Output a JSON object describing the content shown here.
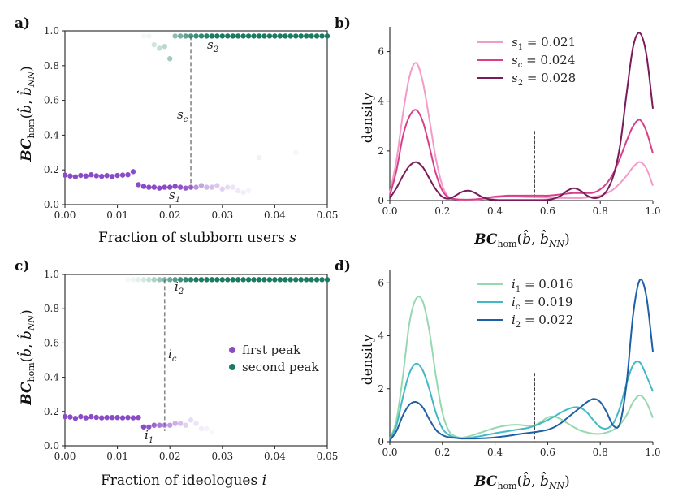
{
  "panels": {
    "a": "a)",
    "b": "b)",
    "c": "c)",
    "d": "d)"
  },
  "colors": {
    "first_peak": "#8a4bc7",
    "second_peak": "#1b7a62",
    "s1": "#f49ac9",
    "sc": "#d6408b",
    "s2": "#7a1a5a",
    "i1": "#98d8b0",
    "ic": "#42b9c6",
    "i2": "#1f5fa6"
  },
  "labels": {
    "ylabel_left": "BC_hom(b̂, b̂_NN)",
    "xlabel_b": "BC_hom(b̂, b̂_NN)",
    "xlabel_a": "Fraction of stubborn users s",
    "xlabel_c": "Fraction of ideologues i",
    "density": "density",
    "a_s2": "s2",
    "a_sc": "sc",
    "a_s1": "s1",
    "c_i2": "i2",
    "c_ic": "ic",
    "c_i1": "i1",
    "legend_first": "first peak",
    "legend_second": "second peak",
    "b_leg1": "s1 = 0.021",
    "b_leg2": "sc = 0.024",
    "b_leg3": "s2 = 0.028",
    "d_leg1": "i1 = 0.016",
    "d_leg2": "ic = 0.019",
    "d_leg3": "i2 = 0.022"
  },
  "chart_data": [
    {
      "id": "a",
      "type": "scatter",
      "xlabel": "Fraction of stubborn users s",
      "ylabel": "BC_hom(b̂, b̂_NN)",
      "xlim": [
        0,
        0.05
      ],
      "ylim": [
        0,
        1
      ],
      "xticks": [
        "0.00",
        "0.01",
        "0.02",
        "0.03",
        "0.04",
        "0.05"
      ],
      "yticks": [
        "0.0",
        "0.2",
        "0.4",
        "0.6",
        "0.8",
        "1.0"
      ],
      "vline": 0.024,
      "series": [
        {
          "name": "first peak",
          "x": [
            0.0,
            0.001,
            0.002,
            0.003,
            0.004,
            0.005,
            0.006,
            0.007,
            0.008,
            0.009,
            0.01,
            0.011,
            0.012,
            0.013,
            0.014,
            0.015,
            0.016,
            0.017,
            0.018,
            0.019,
            0.02,
            0.021,
            0.022,
            0.023,
            0.024,
            0.025,
            0.026,
            0.027,
            0.028,
            0.029,
            0.03,
            0.031,
            0.032,
            0.033,
            0.034,
            0.035
          ],
          "y": [
            0.17,
            0.165,
            0.16,
            0.168,
            0.165,
            0.172,
            0.166,
            0.163,
            0.167,
            0.162,
            0.168,
            0.17,
            0.172,
            0.19,
            0.115,
            0.105,
            0.1,
            0.1,
            0.095,
            0.1,
            0.1,
            0.105,
            0.1,
            0.095,
            0.1,
            0.1,
            0.11,
            0.1,
            0.1,
            0.11,
            0.09,
            0.1,
            0.1,
            0.08,
            0.07,
            0.08
          ],
          "alpha": [
            1,
            1,
            1,
            1,
            1,
            1,
            1,
            1,
            1,
            1,
            1,
            1,
            1,
            1,
            1,
            1,
            1,
            1,
            1,
            1,
            1,
            1,
            0.95,
            0.9,
            0.8,
            0.6,
            0.5,
            0.4,
            0.35,
            0.3,
            0.25,
            0.2,
            0.15,
            0.12,
            0.1,
            0.08
          ]
        },
        {
          "name": "second peak",
          "x": [
            0.015,
            0.016,
            0.017,
            0.018,
            0.019,
            0.02,
            0.021,
            0.022,
            0.023,
            0.024,
            0.025,
            0.026,
            0.027,
            0.028,
            0.029,
            0.03,
            0.031,
            0.032,
            0.033,
            0.034,
            0.035,
            0.036,
            0.037,
            0.038,
            0.039,
            0.04,
            0.041,
            0.042,
            0.043,
            0.044,
            0.045,
            0.046,
            0.047,
            0.048,
            0.049,
            0.05,
            0.037,
            0.044
          ],
          "y": [
            0.97,
            0.97,
            0.92,
            0.9,
            0.91,
            0.84,
            0.97,
            0.97,
            0.97,
            0.97,
            0.97,
            0.97,
            0.97,
            0.97,
            0.97,
            0.97,
            0.97,
            0.97,
            0.97,
            0.97,
            0.97,
            0.97,
            0.97,
            0.97,
            0.97,
            0.97,
            0.97,
            0.97,
            0.97,
            0.97,
            0.97,
            0.97,
            0.97,
            0.97,
            0.97,
            0.97,
            0.27,
            0.3
          ],
          "alpha": [
            0.05,
            0.07,
            0.2,
            0.25,
            0.3,
            0.4,
            0.5,
            0.6,
            0.7,
            0.8,
            0.85,
            0.9,
            0.95,
            1,
            1,
            1,
            1,
            1,
            1,
            1,
            1,
            1,
            1,
            1,
            1,
            1,
            1,
            1,
            1,
            1,
            1,
            1,
            1,
            1,
            1,
            1,
            0.08,
            0.05
          ]
        }
      ]
    },
    {
      "id": "b",
      "type": "line",
      "xlabel": "BC_hom(b̂, b̂_NN)",
      "ylabel": "density",
      "xlim": [
        0,
        1
      ],
      "ylim": [
        0,
        7
      ],
      "xticks": [
        "0.0",
        "0.2",
        "0.4",
        "0.6",
        "0.8",
        "1.0"
      ],
      "yticks": [
        "0",
        "2",
        "4",
        "6"
      ],
      "vline": 0.55,
      "x": [
        0.0,
        0.025,
        0.05,
        0.075,
        0.1,
        0.125,
        0.15,
        0.175,
        0.2,
        0.225,
        0.25,
        0.275,
        0.3,
        0.325,
        0.35,
        0.375,
        0.4,
        0.425,
        0.45,
        0.475,
        0.5,
        0.525,
        0.55,
        0.575,
        0.6,
        0.625,
        0.65,
        0.675,
        0.7,
        0.725,
        0.75,
        0.775,
        0.8,
        0.825,
        0.85,
        0.875,
        0.9,
        0.925,
        0.95,
        0.975,
        1.0
      ],
      "series": [
        {
          "name": "s1 = 0.021",
          "values": [
            0.3,
            1.6,
            3.5,
            5.0,
            5.55,
            4.8,
            3.3,
            1.7,
            0.6,
            0.12,
            0.05,
            0.03,
            0.03,
            0.03,
            0.05,
            0.08,
            0.12,
            0.15,
            0.16,
            0.16,
            0.15,
            0.14,
            0.13,
            0.12,
            0.11,
            0.1,
            0.1,
            0.1,
            0.1,
            0.1,
            0.12,
            0.15,
            0.2,
            0.3,
            0.45,
            0.7,
            1.0,
            1.35,
            1.55,
            1.3,
            0.6
          ]
        },
        {
          "name": "sc = 0.024",
          "values": [
            0.2,
            1.2,
            2.6,
            3.4,
            3.65,
            3.2,
            2.2,
            1.1,
            0.4,
            0.12,
            0.06,
            0.04,
            0.04,
            0.05,
            0.08,
            0.12,
            0.16,
            0.18,
            0.2,
            0.2,
            0.2,
            0.2,
            0.2,
            0.2,
            0.2,
            0.22,
            0.25,
            0.28,
            0.3,
            0.3,
            0.3,
            0.32,
            0.45,
            0.7,
            1.1,
            1.7,
            2.4,
            3.0,
            3.25,
            2.8,
            1.9
          ]
        },
        {
          "name": "s2 = 0.028",
          "values": [
            0.1,
            0.5,
            1.0,
            1.4,
            1.55,
            1.35,
            0.9,
            0.45,
            0.15,
            0.08,
            0.2,
            0.35,
            0.4,
            0.3,
            0.15,
            0.06,
            0.03,
            0.02,
            0.02,
            0.02,
            0.02,
            0.02,
            0.02,
            0.02,
            0.03,
            0.08,
            0.2,
            0.4,
            0.5,
            0.4,
            0.2,
            0.1,
            0.15,
            0.4,
            1.0,
            2.2,
            4.3,
            6.2,
            6.75,
            5.9,
            3.7
          ]
        }
      ]
    },
    {
      "id": "c",
      "type": "scatter",
      "xlabel": "Fraction of ideologues i",
      "ylabel": "BC_hom(b̂, b̂_NN)",
      "xlim": [
        0,
        0.05
      ],
      "ylim": [
        0,
        1
      ],
      "xticks": [
        "0.00",
        "0.01",
        "0.02",
        "0.03",
        "0.04",
        "0.05"
      ],
      "yticks": [
        "0.0",
        "0.2",
        "0.4",
        "0.6",
        "0.8",
        "1.0"
      ],
      "vline": 0.019,
      "series": [
        {
          "name": "first peak",
          "x": [
            0.0,
            0.001,
            0.002,
            0.003,
            0.004,
            0.005,
            0.006,
            0.007,
            0.008,
            0.009,
            0.01,
            0.011,
            0.012,
            0.013,
            0.014,
            0.015,
            0.016,
            0.017,
            0.018,
            0.019,
            0.02,
            0.021,
            0.022,
            0.023,
            0.024,
            0.025,
            0.026,
            0.027,
            0.028
          ],
          "y": [
            0.17,
            0.168,
            0.16,
            0.17,
            0.163,
            0.17,
            0.166,
            0.163,
            0.165,
            0.165,
            0.165,
            0.163,
            0.165,
            0.163,
            0.165,
            0.11,
            0.11,
            0.12,
            0.12,
            0.12,
            0.12,
            0.13,
            0.13,
            0.12,
            0.15,
            0.13,
            0.1,
            0.1,
            0.08
          ],
          "alpha": [
            1,
            1,
            1,
            1,
            1,
            1,
            1,
            1,
            1,
            1,
            1,
            1,
            1,
            1,
            1,
            1,
            0.95,
            0.85,
            0.75,
            0.65,
            0.55,
            0.45,
            0.35,
            0.25,
            0.2,
            0.15,
            0.1,
            0.08,
            0.05
          ]
        },
        {
          "name": "second peak",
          "x": [
            0.012,
            0.013,
            0.014,
            0.015,
            0.016,
            0.017,
            0.018,
            0.019,
            0.02,
            0.021,
            0.022,
            0.023,
            0.024,
            0.025,
            0.026,
            0.027,
            0.028,
            0.029,
            0.03,
            0.031,
            0.032,
            0.033,
            0.034,
            0.035,
            0.036,
            0.037,
            0.038,
            0.039,
            0.04,
            0.041,
            0.042,
            0.043,
            0.044,
            0.045,
            0.046,
            0.047,
            0.048,
            0.049,
            0.05
          ],
          "y": [
            0.97,
            0.97,
            0.97,
            0.97,
            0.97,
            0.97,
            0.97,
            0.97,
            0.97,
            0.97,
            0.97,
            0.97,
            0.97,
            0.97,
            0.97,
            0.97,
            0.97,
            0.97,
            0.97,
            0.97,
            0.97,
            0.97,
            0.97,
            0.97,
            0.97,
            0.97,
            0.97,
            0.97,
            0.97,
            0.97,
            0.97,
            0.97,
            0.97,
            0.97,
            0.97,
            0.97,
            0.97,
            0.97,
            0.97
          ],
          "alpha": [
            0.05,
            0.08,
            0.12,
            0.18,
            0.25,
            0.35,
            0.45,
            0.55,
            0.65,
            0.75,
            0.85,
            0.9,
            0.95,
            1,
            1,
            1,
            1,
            1,
            1,
            1,
            1,
            1,
            1,
            1,
            1,
            1,
            1,
            1,
            1,
            1,
            1,
            1,
            1,
            1,
            1,
            1,
            1,
            1,
            1
          ]
        }
      ]
    },
    {
      "id": "d",
      "type": "line",
      "xlabel": "BC_hom(b̂, b̂_NN)",
      "ylabel": "density",
      "xlim": [
        0,
        1
      ],
      "ylim": [
        0,
        6.5
      ],
      "xticks": [
        "0.0",
        "0.2",
        "0.4",
        "0.6",
        "0.8",
        "1.0"
      ],
      "yticks": [
        "0",
        "2",
        "4",
        "6"
      ],
      "vline": 0.55,
      "x": [
        0.0,
        0.025,
        0.05,
        0.075,
        0.1,
        0.125,
        0.15,
        0.175,
        0.2,
        0.225,
        0.25,
        0.275,
        0.3,
        0.325,
        0.35,
        0.375,
        0.4,
        0.425,
        0.45,
        0.475,
        0.5,
        0.525,
        0.55,
        0.575,
        0.6,
        0.625,
        0.65,
        0.675,
        0.7,
        0.725,
        0.75,
        0.775,
        0.8,
        0.825,
        0.85,
        0.875,
        0.9,
        0.925,
        0.95,
        0.975,
        1.0
      ],
      "series": [
        {
          "name": "i1 = 0.016",
          "values": [
            0.1,
            0.8,
            2.5,
            4.5,
            5.4,
            5.3,
            4.2,
            2.5,
            1.1,
            0.4,
            0.2,
            0.15,
            0.2,
            0.28,
            0.36,
            0.44,
            0.52,
            0.58,
            0.62,
            0.64,
            0.63,
            0.6,
            0.62,
            0.75,
            0.92,
            0.95,
            0.85,
            0.7,
            0.55,
            0.42,
            0.35,
            0.3,
            0.3,
            0.35,
            0.45,
            0.65,
            1.0,
            1.5,
            1.75,
            1.5,
            0.9
          ]
        },
        {
          "name": "ic = 0.019",
          "values": [
            0.1,
            0.6,
            1.7,
            2.6,
            2.95,
            2.7,
            2.0,
            1.1,
            0.5,
            0.25,
            0.15,
            0.12,
            0.14,
            0.18,
            0.22,
            0.27,
            0.32,
            0.36,
            0.4,
            0.44,
            0.48,
            0.52,
            0.6,
            0.7,
            0.82,
            0.95,
            1.1,
            1.22,
            1.3,
            1.28,
            1.1,
            0.8,
            0.55,
            0.5,
            0.7,
            1.3,
            2.2,
            2.9,
            3.0,
            2.5,
            1.9
          ]
        },
        {
          "name": "i2 = 0.022",
          "values": [
            0.05,
            0.4,
            1.0,
            1.4,
            1.5,
            1.3,
            0.85,
            0.45,
            0.25,
            0.17,
            0.14,
            0.12,
            0.12,
            0.12,
            0.13,
            0.14,
            0.16,
            0.19,
            0.22,
            0.26,
            0.3,
            0.33,
            0.36,
            0.4,
            0.45,
            0.55,
            0.7,
            0.9,
            1.1,
            1.3,
            1.5,
            1.62,
            1.5,
            1.1,
            0.6,
            0.7,
            2.2,
            4.8,
            6.1,
            5.5,
            3.4
          ]
        }
      ]
    }
  ]
}
